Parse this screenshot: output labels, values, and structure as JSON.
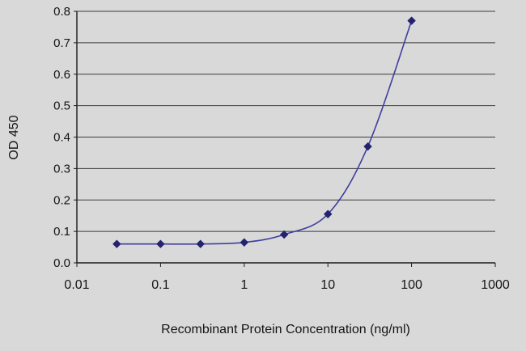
{
  "chart_data": {
    "type": "line",
    "x": [
      0.03,
      0.1,
      0.3,
      1,
      3,
      10,
      30,
      100
    ],
    "y": [
      0.06,
      0.06,
      0.06,
      0.065,
      0.09,
      0.155,
      0.37,
      0.77
    ],
    "title": "",
    "xlabel": "Recombinant Protein Concentration (ng/ml)",
    "ylabel": "OD 450",
    "x_scale": "log",
    "xlim": [
      0.01,
      1000
    ],
    "ylim": [
      0,
      0.8
    ],
    "x_ticks": [
      "0.01",
      "0.1",
      "1",
      "10",
      "100",
      "1000"
    ],
    "y_ticks": [
      "0.0",
      "0.1",
      "0.2",
      "0.3",
      "0.4",
      "0.5",
      "0.6",
      "0.7",
      "0.8"
    ],
    "grid": "horizontal",
    "legend": "none",
    "marker_shape": "diamond",
    "colors": {
      "line": "#3f3f9f",
      "marker": "#23236f",
      "grid": "#3c3c3c",
      "axis": "#1a1a1a",
      "text": "#141414",
      "background": "#d9d9d9"
    }
  }
}
